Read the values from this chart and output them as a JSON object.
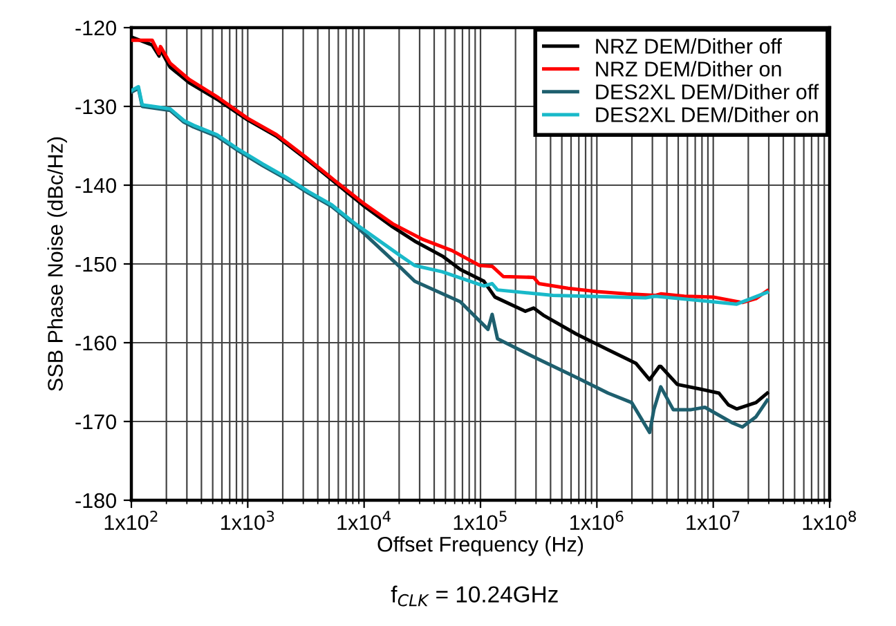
{
  "chart_data": {
    "type": "line",
    "xlabel": "Offset Frequency (Hz)",
    "ylabel": "SSB Phase Noise (dBc/Hz)",
    "log": "x",
    "xlim": [
      100,
      100000000
    ],
    "ylim": [
      -180,
      -120
    ],
    "xticks": [
      {
        "value": 100,
        "label": "1x10$^{2}$"
      },
      {
        "value": 1000,
        "label": "1x10$^{3}$"
      },
      {
        "value": 10000,
        "label": "1x10$^{4}$"
      },
      {
        "value": 100000,
        "label": "1x10$^{5}$"
      },
      {
        "value": 1000000,
        "label": "1x10$^{6}$"
      },
      {
        "value": 10000000,
        "label": "1x10$^{7}$"
      },
      {
        "value": 100000000,
        "label": "1x10$^{8}$"
      }
    ],
    "yticks": [
      -180,
      -170,
      -160,
      -150,
      -140,
      -130,
      -120
    ],
    "grid": true,
    "legend": "top right",
    "marker": "none",
    "line_style": "solid",
    "annotations": [
      "f$_{CLK}$ = 10.24GHz"
    ],
    "series": [
      {
        "name": "NRZ DEM/Dither off",
        "color": "#000000",
        "x": [
          100,
          151,
          173,
          178,
          215,
          315,
          560,
          995,
          1770,
          3130,
          5570,
          9890,
          17600,
          27200,
          47000,
          67100,
          107000,
          133000,
          243000,
          286000,
          346000,
          667000,
          1250000,
          2160000,
          2840000,
          3440000,
          3540000,
          4910000,
          7820000,
          11200000,
          13500000,
          15900000,
          23300000,
          29100000
        ],
        "values": [
          -121.2,
          -122.2,
          -123.6,
          -122.8,
          -125.0,
          -127.0,
          -129.2,
          -131.7,
          -133.8,
          -136.6,
          -139.6,
          -142.6,
          -145.3,
          -147.1,
          -149.0,
          -150.7,
          -152.2,
          -154.2,
          -156.0,
          -155.6,
          -156.5,
          -158.9,
          -160.9,
          -162.6,
          -164.7,
          -163.0,
          -163.0,
          -165.3,
          -165.9,
          -166.4,
          -167.9,
          -168.4,
          -167.6,
          -166.4
        ]
      },
      {
        "name": "NRZ DEM/Dither on",
        "color": "#ff0000",
        "x": [
          100,
          151,
          173,
          178,
          215,
          315,
          560,
          995,
          1770,
          3130,
          5570,
          9890,
          17600,
          32100,
          56900,
          98400,
          126000,
          157000,
          286000,
          318000,
          566000,
          1000000,
          1790000,
          3170000,
          3540000,
          5640000,
          10000000,
          17800000,
          23300000,
          29100000
        ],
        "values": [
          -121.6,
          -121.6,
          -123.3,
          -122.4,
          -124.5,
          -126.6,
          -128.9,
          -131.5,
          -133.6,
          -136.4,
          -139.4,
          -142.3,
          -144.9,
          -146.9,
          -148.3,
          -150.2,
          -150.3,
          -151.6,
          -151.7,
          -152.5,
          -153.1,
          -153.5,
          -153.8,
          -154.0,
          -153.8,
          -154.1,
          -154.2,
          -154.9,
          -154.4,
          -153.4
        ]
      },
      {
        "name": "DES2XL DEM/Dither off",
        "color": "#1e5f6e",
        "x": [
          100,
          115,
          124,
          215,
          283,
          342,
          545,
          843,
          1340,
          2140,
          3310,
          5270,
          8400,
          20700,
          27200,
          67100,
          116000,
          126000,
          140000,
          286000,
          667000,
          1250000,
          1990000,
          2840000,
          3090000,
          3540000,
          4530000,
          6460000,
          8490000,
          14700000,
          17800000,
          23300000,
          29100000
        ],
        "values": [
          -128.2,
          -127.7,
          -130.0,
          -130.5,
          -132.0,
          -132.6,
          -133.8,
          -135.7,
          -137.5,
          -139.2,
          -141.0,
          -142.7,
          -145.1,
          -150.5,
          -152.2,
          -154.8,
          -158.3,
          -156.4,
          -159.5,
          -161.8,
          -164.4,
          -166.4,
          -167.6,
          -171.4,
          -168.5,
          -165.6,
          -168.5,
          -168.5,
          -168.2,
          -170.2,
          -170.7,
          -169.4,
          -167.3
        ]
      },
      {
        "name": "DES2XL DEM/Dither on",
        "color": "#19b9c9",
        "x": [
          100,
          115,
          124,
          215,
          283,
          342,
          545,
          843,
          1340,
          2140,
          3310,
          5270,
          8400,
          20700,
          27200,
          47000,
          107000,
          126000,
          140000,
          419000,
          2620000,
          3170000,
          15900000,
          29100000
        ],
        "values": [
          -128.0,
          -127.5,
          -129.8,
          -130.3,
          -131.8,
          -132.4,
          -133.6,
          -135.5,
          -137.3,
          -139.0,
          -140.8,
          -142.5,
          -144.9,
          -149.0,
          -150.2,
          -151.0,
          -152.8,
          -152.5,
          -153.3,
          -154.0,
          -154.3,
          -154.1,
          -155.1,
          -153.6
        ]
      }
    ]
  }
}
